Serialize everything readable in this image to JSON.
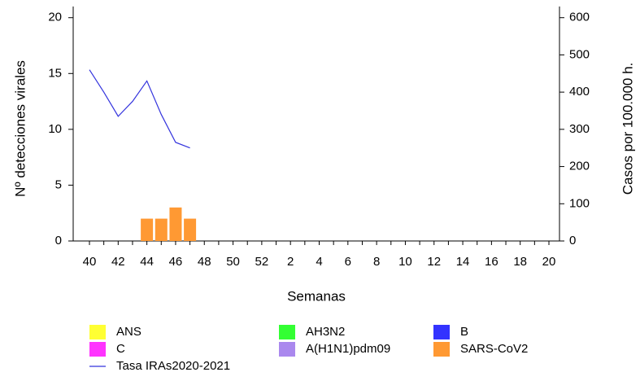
{
  "chart_data": {
    "type": "bar",
    "xlabel": "Semanas",
    "ylabel": "Nº detecciones virales",
    "y2label": "Casos por 100.000 h.",
    "categories": [
      40,
      null,
      42,
      null,
      44,
      null,
      46,
      null,
      48,
      null,
      50,
      null,
      52,
      null,
      2,
      null,
      4,
      null,
      6,
      null,
      8,
      null,
      10,
      null,
      12,
      null,
      14,
      null,
      16,
      null,
      18,
      null,
      20
    ],
    "ylim": [
      0,
      21
    ],
    "yticks": [
      0,
      5,
      10,
      15,
      20
    ],
    "y2lim": [
      0,
      630
    ],
    "y2ticks": [
      0,
      100,
      200,
      300,
      400,
      500,
      600
    ],
    "series": [
      {
        "name": "ANS",
        "color": "#ffff33",
        "values": [
          null,
          null,
          null,
          null,
          null,
          null,
          null,
          null,
          null,
          null,
          null,
          null,
          null,
          null,
          null,
          null,
          null,
          null,
          null,
          null,
          null,
          null,
          null,
          null,
          null,
          null,
          null,
          null,
          null,
          null,
          null,
          null,
          null
        ]
      },
      {
        "name": "AH3N2",
        "color": "#33ff33",
        "values": [
          null,
          null,
          null,
          null,
          null,
          null,
          null,
          null,
          null,
          null,
          null,
          null,
          null,
          null,
          null,
          null,
          null,
          null,
          null,
          null,
          null,
          null,
          null,
          null,
          null,
          null,
          null,
          null,
          null,
          null,
          null,
          null,
          null
        ]
      },
      {
        "name": "B",
        "color": "#3333ff",
        "values": [
          null,
          null,
          null,
          null,
          null,
          null,
          null,
          null,
          null,
          null,
          null,
          null,
          null,
          null,
          null,
          null,
          null,
          null,
          null,
          null,
          null,
          null,
          null,
          null,
          null,
          null,
          null,
          null,
          null,
          null,
          null,
          null,
          null
        ]
      },
      {
        "name": "C",
        "color": "#ff33ff",
        "values": [
          null,
          null,
          null,
          null,
          null,
          null,
          null,
          null,
          null,
          null,
          null,
          null,
          null,
          null,
          null,
          null,
          null,
          null,
          null,
          null,
          null,
          null,
          null,
          null,
          null,
          null,
          null,
          null,
          null,
          null,
          null,
          null,
          null
        ]
      },
      {
        "name": "A(H1N1)pdm09",
        "color": "#aa88ee",
        "values": [
          null,
          null,
          null,
          null,
          null,
          null,
          null,
          null,
          null,
          null,
          null,
          null,
          null,
          null,
          null,
          null,
          null,
          null,
          null,
          null,
          null,
          null,
          null,
          null,
          null,
          null,
          null,
          null,
          null,
          null,
          null,
          null,
          null
        ]
      },
      {
        "name": "SARS-CoV2",
        "color": "#ff9933",
        "values": [
          null,
          null,
          null,
          null,
          2,
          2,
          3,
          2,
          null,
          null,
          null,
          null,
          null,
          null,
          null,
          null,
          null,
          null,
          null,
          null,
          null,
          null,
          null,
          null,
          null,
          null,
          null,
          null,
          null,
          null,
          null,
          null,
          null
        ]
      },
      {
        "name": "Tasa IRAs2020-2021",
        "color": "#3333dd",
        "type": "line",
        "axis": "y2",
        "values": [
          460,
          400,
          335,
          375,
          430,
          340,
          265,
          250,
          null,
          null,
          null,
          null,
          null,
          null,
          null,
          null,
          null,
          null,
          null,
          null,
          null,
          null,
          null,
          null,
          null,
          null,
          null,
          null,
          null,
          null,
          null,
          null,
          null
        ]
      }
    ]
  }
}
